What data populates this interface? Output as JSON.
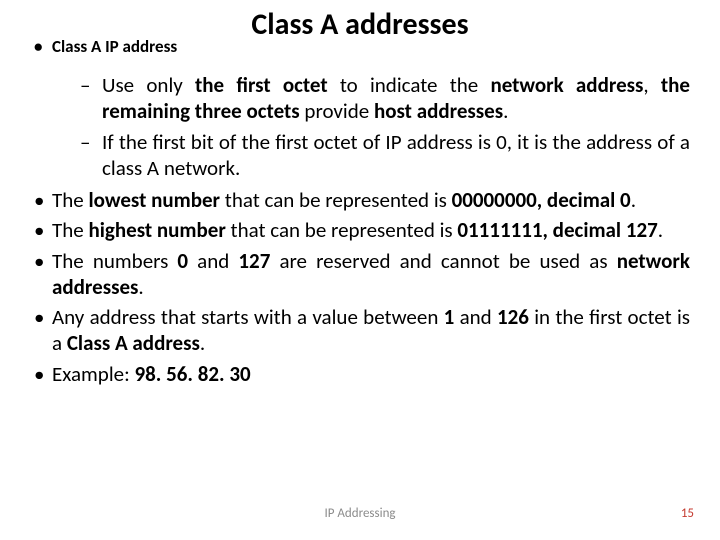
{
  "title": "Class A addresses",
  "bullet1_label": "Class A IP address",
  "sub1_pre": "Use only ",
  "sub1_b1": "the first octet ",
  "sub1_mid1": "to indicate the ",
  "sub1_b2": "network address",
  "sub1_mid2": ", ",
  "sub1_b3": "the remaining three octets ",
  "sub1_mid3": "provide  ",
  "sub1_b4": "host addresses",
  "sub1_end": ".",
  "sub2": "If the first bit of the first octet of IP address is 0, it is the address of a class A network.",
  "b2_pre": "The ",
  "b2_b1": "lowest number ",
  "b2_mid": "that can be represented is ",
  "b2_b2": "00000000, decimal 0",
  "b2_end": ".",
  "b3_pre": "The ",
  "b3_b1": "highest number ",
  "b3_mid": "that can be represented is ",
  "b3_b2": "01111111, decimal 127",
  "b3_end": ".",
  "b4_pre": "The numbers ",
  "b4_b1": "0 ",
  "b4_mid1": "and ",
  "b4_b2": "127 ",
  "b4_mid2": "are reserved and cannot be used as ",
  "b4_b3": "network addresses",
  "b4_end": ".",
  "b5_pre": "Any address that starts with a value between ",
  "b5_b1": "1 ",
  "b5_mid1": "and ",
  "b5_b2": "126 ",
  "b5_mid2": "in the first octet is a ",
  "b5_b3": "Class A address",
  "b5_end": ".",
  "b6_pre": "Example: ",
  "b6_b1": "98. 56. 82. 30",
  "footer_center": "IP Addressing",
  "footer_page": "15"
}
